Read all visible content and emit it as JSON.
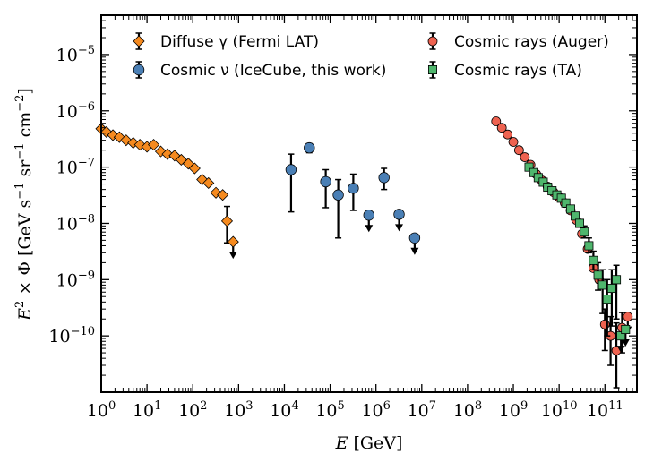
{
  "chart_data": {
    "type": "scatter",
    "xlabel": {
      "base": "E",
      "unit": "[GeV]"
    },
    "ylabel": {
      "lhs": "E",
      "sq": "2",
      "times": " × Φ ",
      "unit_open": "[GeV s",
      "exp1": "−1",
      "sr": " sr",
      "exp2": "−1",
      "cm": " cm",
      "exp3": "−2",
      "unit_close": "]"
    },
    "x_scale": "log",
    "y_scale": "log",
    "xlim": [
      1,
      500000000000
    ],
    "ylim": [
      1e-11,
      5e-05
    ],
    "x_ticks": [
      {
        "base": "10",
        "exp": "0"
      },
      {
        "base": "10",
        "exp": "1"
      },
      {
        "base": "10",
        "exp": "2"
      },
      {
        "base": "10",
        "exp": "3"
      },
      {
        "base": "10",
        "exp": "4"
      },
      {
        "base": "10",
        "exp": "5"
      },
      {
        "base": "10",
        "exp": "6"
      },
      {
        "base": "10",
        "exp": "7"
      },
      {
        "base": "10",
        "exp": "8"
      },
      {
        "base": "10",
        "exp": "9"
      },
      {
        "base": "10",
        "exp": "10"
      },
      {
        "base": "10",
        "exp": "11"
      }
    ],
    "y_ticks": [
      {
        "base": "10",
        "exp": "−10"
      },
      {
        "base": "10",
        "exp": "−9"
      },
      {
        "base": "10",
        "exp": "−8"
      },
      {
        "base": "10",
        "exp": "−7"
      },
      {
        "base": "10",
        "exp": "−6"
      },
      {
        "base": "10",
        "exp": "−5"
      }
    ],
    "grid": false,
    "legend_placement": "top",
    "series": [
      {
        "name": "Diffuse γ (Fermi LAT)",
        "marker": "diamond",
        "color": "#f58a1f",
        "points": [
          {
            "x": 1.0,
            "y": 4.8e-07
          },
          {
            "x": 1.3,
            "y": 4.2e-07
          },
          {
            "x": 1.8,
            "y": 3.7e-07
          },
          {
            "x": 2.5,
            "y": 3.4e-07
          },
          {
            "x": 3.5,
            "y": 3e-07
          },
          {
            "x": 5.0,
            "y": 2.7e-07
          },
          {
            "x": 7.0,
            "y": 2.5e-07
          },
          {
            "x": 10.0,
            "y": 2.3e-07
          },
          {
            "x": 14.0,
            "y": 2.5e-07
          },
          {
            "x": 20.0,
            "y": 1.9e-07
          },
          {
            "x": 28.0,
            "y": 1.7e-07
          },
          {
            "x": 40.0,
            "y": 1.6e-07
          },
          {
            "x": 56.0,
            "y": 1.35e-07
          },
          {
            "x": 80.0,
            "y": 1.15e-07
          },
          {
            "x": 110.0,
            "y": 9.5e-08
          },
          {
            "x": 160.0,
            "y": 6e-08
          },
          {
            "x": 220.0,
            "y": 5.2e-08
          },
          {
            "x": 320.0,
            "y": 3.5e-08
          },
          {
            "x": 450.0,
            "y": 3.2e-08
          },
          {
            "x": 560.0,
            "y": 1.1e-08,
            "err_lo": 4.5e-09,
            "err_hi": 2e-08
          },
          {
            "x": 760.0,
            "y": 4.7e-09,
            "upper_limit": true
          }
        ]
      },
      {
        "name": "Cosmic ν (IceCube, this work)",
        "marker": "circle",
        "color": "#4a7fb5",
        "points": [
          {
            "x": 14000,
            "y": 9e-08,
            "err_lo": 1.6e-08,
            "err_hi": 1.7e-07
          },
          {
            "x": 35000,
            "y": 2.2e-07,
            "err_lo": 1.8e-07,
            "err_hi": 2.6e-07
          },
          {
            "x": 80000,
            "y": 5.5e-08,
            "err_lo": 1.9e-08,
            "err_hi": 9e-08
          },
          {
            "x": 150000,
            "y": 3.2e-08,
            "err_lo": 5.5e-09,
            "err_hi": 6e-08
          },
          {
            "x": 320000,
            "y": 4.2e-08,
            "err_lo": 1.7e-08,
            "err_hi": 7.5e-08
          },
          {
            "x": 700000,
            "y": 1.4e-08,
            "upper_limit": true
          },
          {
            "x": 1500000,
            "y": 6.5e-08,
            "err_lo": 4e-08,
            "err_hi": 9.5e-08
          },
          {
            "x": 3200000,
            "y": 1.45e-08,
            "upper_limit": true
          },
          {
            "x": 7000000,
            "y": 5.5e-09,
            "upper_limit": true
          }
        ]
      },
      {
        "name": "Cosmic rays (Auger)",
        "marker": "circle",
        "color": "#ee6250",
        "points": [
          {
            "x": 420000000,
            "y": 6.5e-07
          },
          {
            "x": 560000000,
            "y": 5e-07
          },
          {
            "x": 750000000,
            "y": 3.8e-07
          },
          {
            "x": 1000000000,
            "y": 2.8e-07
          },
          {
            "x": 1330000000,
            "y": 2e-07
          },
          {
            "x": 1780000000,
            "y": 1.5e-07
          },
          {
            "x": 2370000000,
            "y": 1.1e-07
          },
          {
            "x": 3160000000,
            "y": 7.5e-08
          },
          {
            "x": 4200000000,
            "y": 5.8e-08
          },
          {
            "x": 5600000000,
            "y": 4.5e-08
          },
          {
            "x": 7500000000,
            "y": 3.6e-08
          },
          {
            "x": 10000000000,
            "y": 2.9e-08
          },
          {
            "x": 13300000000,
            "y": 2.3e-08
          },
          {
            "x": 17800000000,
            "y": 1.7e-08
          },
          {
            "x": 23700000000,
            "y": 1.15e-08
          },
          {
            "x": 31600000000,
            "y": 6.5e-09
          },
          {
            "x": 42000000000,
            "y": 3.5e-09
          },
          {
            "x": 56000000000,
            "y": 1.6e-09
          },
          {
            "x": 75000000000,
            "y": 1e-09
          },
          {
            "x": 100000000000,
            "y": 1.6e-10,
            "err_lo": 5.5e-11,
            "err_hi": 3e-10
          },
          {
            "x": 133000000000,
            "y": 1e-10,
            "err_lo": 3e-11,
            "err_hi": 2.2e-10
          },
          {
            "x": 178000000000,
            "y": 5.5e-11,
            "err_lo": 1.2e-11,
            "err_hi": 1.7e-10
          },
          {
            "x": 237000000000,
            "y": 1.4e-10,
            "err_lo": 5e-11,
            "err_hi": 2.6e-10
          },
          {
            "x": 316000000000,
            "y": 2.2e-10,
            "upper_limit": true
          }
        ]
      },
      {
        "name": "Cosmic rays (TA)",
        "marker": "square",
        "color": "#4fb66d",
        "points": [
          {
            "x": 2200000000,
            "y": 1e-07
          },
          {
            "x": 2800000000,
            "y": 8e-08
          },
          {
            "x": 3500000000,
            "y": 6.5e-08
          },
          {
            "x": 4500000000,
            "y": 5.4e-08
          },
          {
            "x": 5600000000,
            "y": 4.4e-08
          },
          {
            "x": 7000000000,
            "y": 3.8e-08
          },
          {
            "x": 8900000000,
            "y": 3.2e-08
          },
          {
            "x": 11200000000,
            "y": 2.8e-08
          },
          {
            "x": 14000000000,
            "y": 2.3e-08
          },
          {
            "x": 17800000000,
            "y": 1.8e-08
          },
          {
            "x": 22400000000,
            "y": 1.35e-08
          },
          {
            "x": 28000000000,
            "y": 1e-08
          },
          {
            "x": 35500000000,
            "y": 7e-09,
            "err_lo": 5.5e-09,
            "err_hi": 9e-09
          },
          {
            "x": 44700000000,
            "y": 4e-09,
            "err_lo": 3e-09,
            "err_hi": 5.5e-09
          },
          {
            "x": 56000000000,
            "y": 2.2e-09,
            "err_lo": 1.5e-09,
            "err_hi": 3.2e-09
          },
          {
            "x": 70800000000,
            "y": 1.2e-09,
            "err_lo": 6.5e-10,
            "err_hi": 2e-09
          },
          {
            "x": 89000000000,
            "y": 8e-10,
            "err_lo": 2.5e-10,
            "err_hi": 1.5e-09
          },
          {
            "x": 112000000000,
            "y": 4.5e-10,
            "err_lo": 1e-10,
            "err_hi": 1e-09
          },
          {
            "x": 141000000000,
            "y": 7e-10,
            "err_lo": 1.5e-10,
            "err_hi": 1.5e-09
          },
          {
            "x": 178000000000,
            "y": 1e-09,
            "err_lo": 2e-10,
            "err_hi": 1.8e-09
          },
          {
            "x": 224000000000,
            "y": 1e-10,
            "upper_limit": true
          },
          {
            "x": 282000000000,
            "y": 1.3e-10,
            "upper_limit": true
          }
        ]
      }
    ]
  }
}
